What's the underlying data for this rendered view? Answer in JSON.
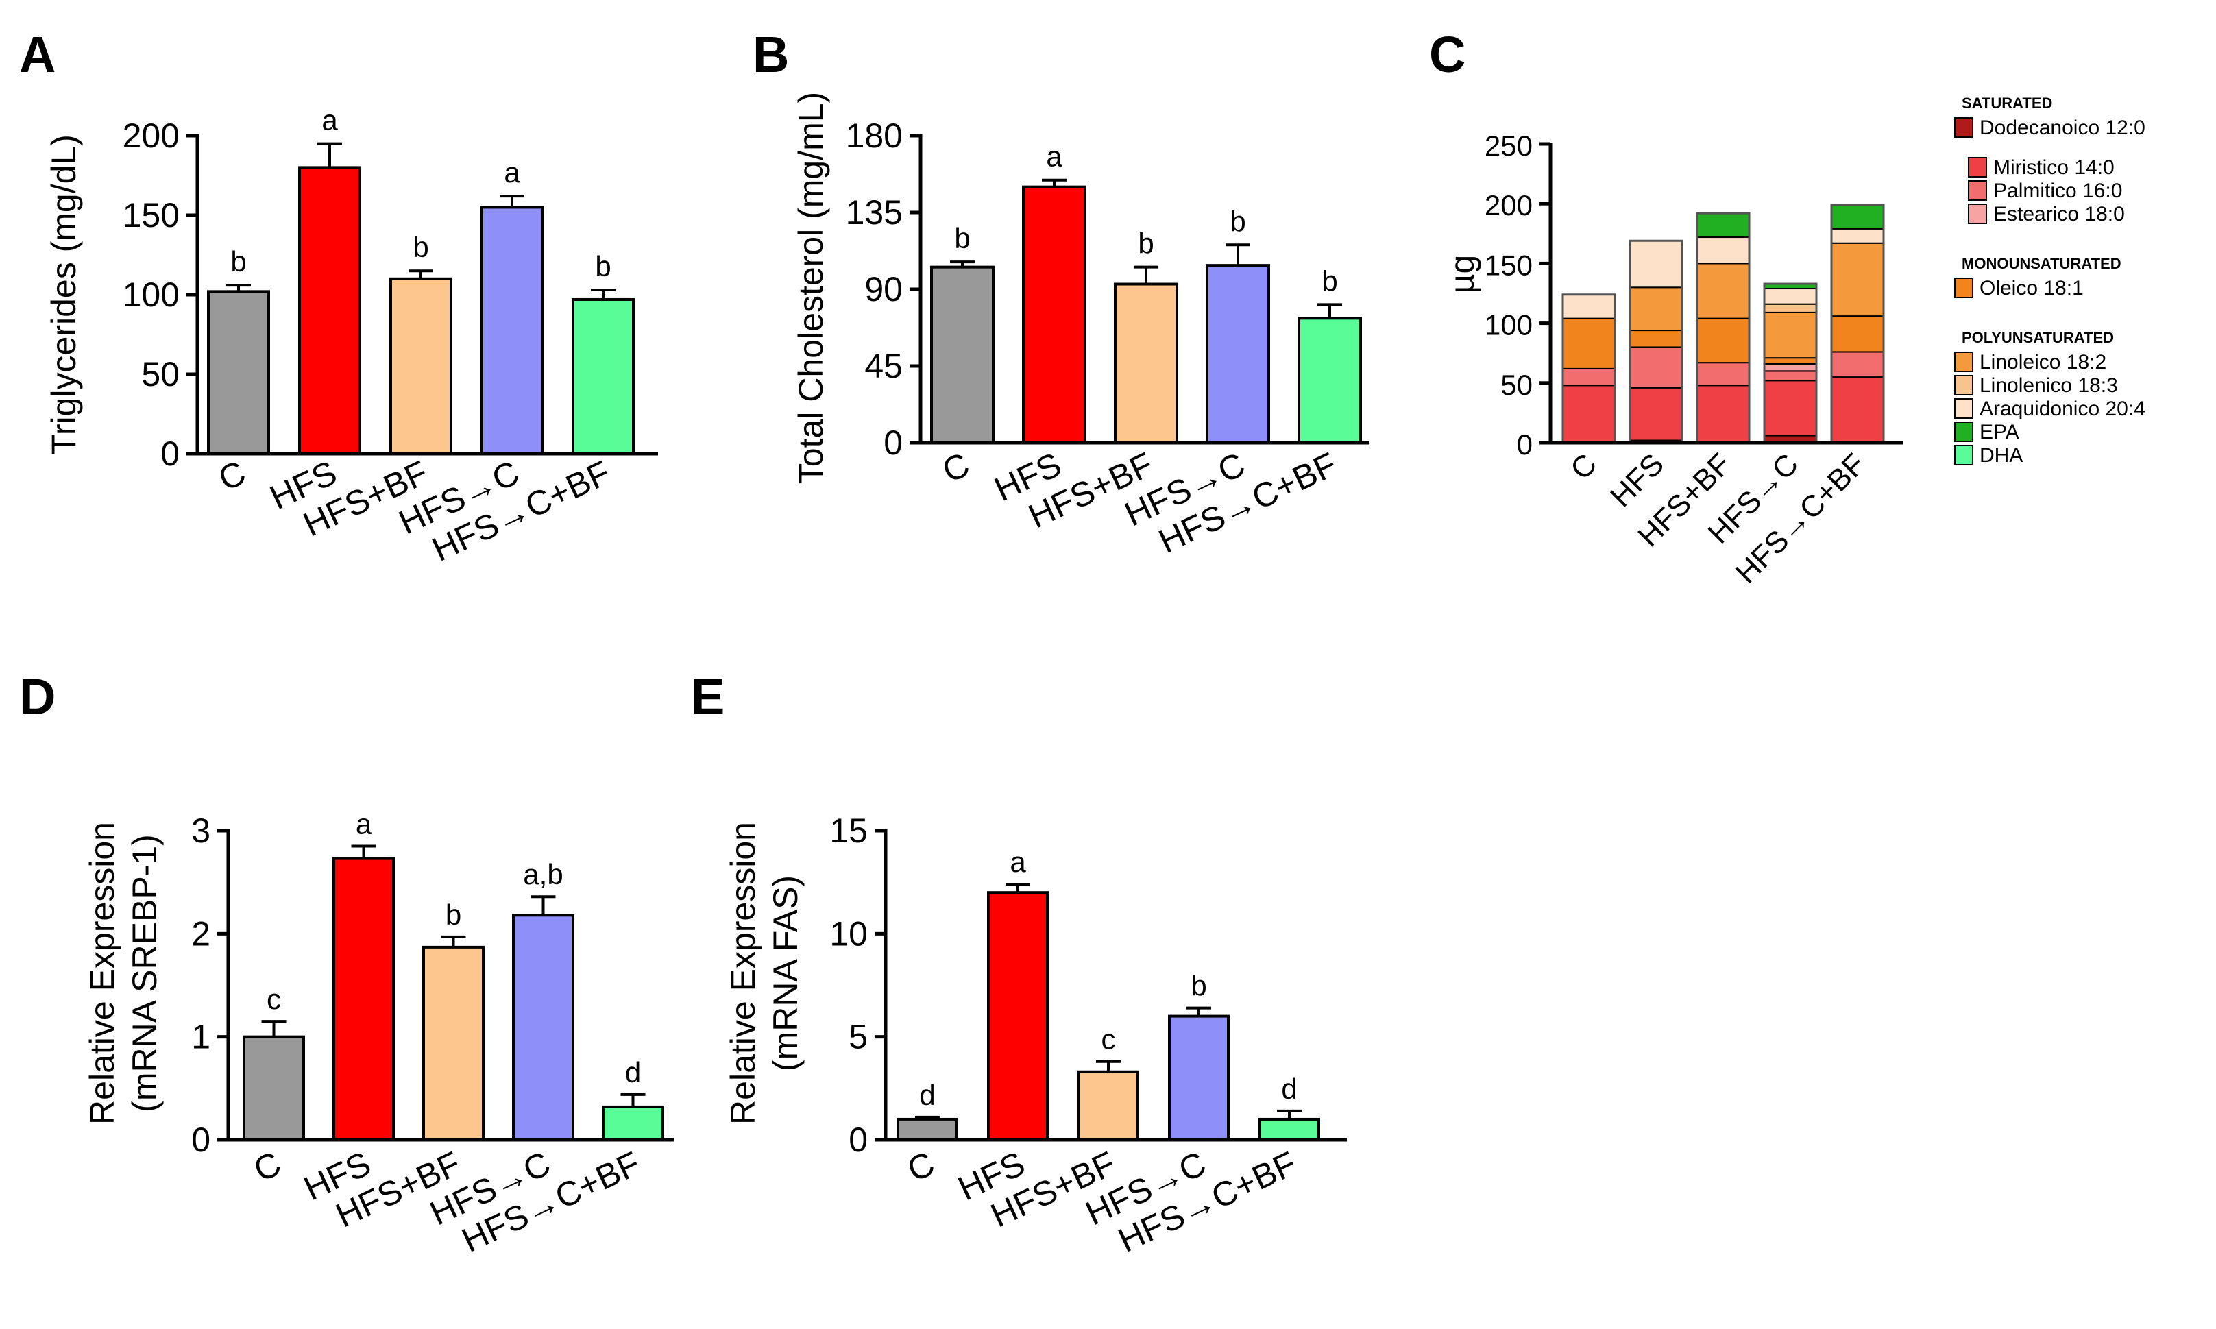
{
  "chart_data": [
    {
      "panel": "A",
      "type": "bar",
      "ylabel": "Triglycerides (mg/dL)",
      "ylim": [
        0,
        200
      ],
      "yticks": [
        0,
        50,
        100,
        150,
        200
      ],
      "categories": [
        "C",
        "HFS",
        "HFS+BF",
        "HFS→C",
        "HFS→C+BF"
      ],
      "values": [
        102,
        180,
        110,
        155,
        97
      ],
      "errors": [
        4,
        15,
        5,
        7,
        6
      ],
      "significance": [
        "b",
        "a",
        "b",
        "a",
        "b"
      ],
      "colors": [
        "#999999",
        "#ff0000",
        "#fcc68e",
        "#8f8ff9",
        "#59fd98"
      ]
    },
    {
      "panel": "B",
      "type": "bar",
      "ylabel": "Total Cholesterol (mg/mL)",
      "ylim": [
        0,
        180
      ],
      "yticks": [
        0,
        45,
        90,
        135,
        180
      ],
      "categories": [
        "C",
        "HFS",
        "HFS+BF",
        "HFS→C",
        "HFS→C+BF"
      ],
      "values": [
        103,
        150,
        93,
        104,
        73
      ],
      "errors": [
        3,
        4,
        10,
        12,
        8
      ],
      "significance": [
        "b",
        "a",
        "b",
        "b",
        "b"
      ],
      "colors": [
        "#999999",
        "#ff0000",
        "#fcc68e",
        "#8f8ff9",
        "#59fd98"
      ]
    },
    {
      "panel": "C",
      "type": "bar",
      "stacked": true,
      "ylabel": "µg",
      "ylim": [
        0,
        250
      ],
      "yticks": [
        0,
        50,
        100,
        150,
        200,
        250
      ],
      "categories": [
        "C",
        "HFS",
        "HFS+BF",
        "HFS→C",
        "HFS→C+BF"
      ],
      "series": [
        {
          "name": "Dodecanoico 12:0",
          "color": "#b11a1a",
          "values": [
            0,
            2,
            0,
            6,
            0
          ]
        },
        {
          "name": "Miristico 14:0",
          "color": "#ef4046",
          "values": [
            48,
            44,
            48,
            46,
            55
          ]
        },
        {
          "name": "Palmitico 16:0",
          "color": "#f26d6d",
          "values": [
            14,
            34,
            19,
            8,
            21
          ]
        },
        {
          "name": "Estearico 18:0",
          "color": "#f8a3a3",
          "values": [
            0,
            0,
            0,
            6,
            0
          ]
        },
        {
          "name": "Oleico 18:1",
          "color": "#f2841e",
          "values": [
            42,
            14,
            37,
            5,
            30
          ]
        },
        {
          "name": "Linoleico 18:2",
          "color": "#f59a3c",
          "values": [
            0,
            36,
            46,
            38,
            61
          ]
        },
        {
          "name": "Linolenico 18:3",
          "color": "#f8c48e",
          "values": [
            0,
            0,
            0,
            7,
            0
          ]
        },
        {
          "name": "Araquidonico 20:4",
          "color": "#fde1c8",
          "values": [
            20,
            39,
            22,
            13,
            12
          ]
        },
        {
          "name": "EPA",
          "color": "#21b021",
          "values": [
            0,
            0,
            20,
            4,
            20
          ]
        },
        {
          "name": "DHA",
          "color": "#59fd98",
          "values": [
            0,
            0,
            0,
            0,
            0
          ]
        }
      ],
      "legend_groups": [
        {
          "heading": "SATURATED",
          "items": [
            "Dodecanoico 12:0",
            "Miristico 14:0",
            "Palmitico 16:0",
            "Estearico 18:0"
          ]
        },
        {
          "heading": "MONOUNSATURATED",
          "items": [
            "Oleico 18:1"
          ]
        },
        {
          "heading": "POLYUNSATURATED",
          "items": [
            "Linoleico 18:2",
            "Linolenico 18:3",
            "Araquidonico 20:4",
            "EPA",
            "DHA"
          ]
        }
      ]
    },
    {
      "panel": "D",
      "type": "bar",
      "ylabel": [
        "Relative Expression",
        "(mRNA SREBP-1)"
      ],
      "ylim": [
        0,
        3
      ],
      "yticks": [
        0,
        1,
        2,
        3
      ],
      "categories": [
        "C",
        "HFS",
        "HFS+BF",
        "HFS→C",
        "HFS→C+BF"
      ],
      "values": [
        1.0,
        2.73,
        1.87,
        2.18,
        0.32
      ],
      "errors": [
        0.15,
        0.12,
        0.1,
        0.18,
        0.12
      ],
      "significance": [
        "c",
        "a",
        "b",
        "a,b",
        "d"
      ],
      "colors": [
        "#999999",
        "#ff0000",
        "#fcc68e",
        "#8f8ff9",
        "#59fd98"
      ]
    },
    {
      "panel": "E",
      "type": "bar",
      "ylabel": [
        "Relative Expression",
        "(mRNA FAS)"
      ],
      "ylim": [
        0,
        15
      ],
      "yticks": [
        0,
        5,
        10,
        15
      ],
      "categories": [
        "C",
        "HFS",
        "HFS+BF",
        "HFS→C",
        "HFS→C+BF"
      ],
      "values": [
        1.0,
        12.0,
        3.3,
        6.0,
        1.0
      ],
      "errors": [
        0.1,
        0.4,
        0.5,
        0.4,
        0.4
      ],
      "significance": [
        "d",
        "a",
        "c",
        "b",
        "d"
      ],
      "colors": [
        "#999999",
        "#ff0000",
        "#fcc68e",
        "#8f8ff9",
        "#59fd98"
      ]
    }
  ]
}
